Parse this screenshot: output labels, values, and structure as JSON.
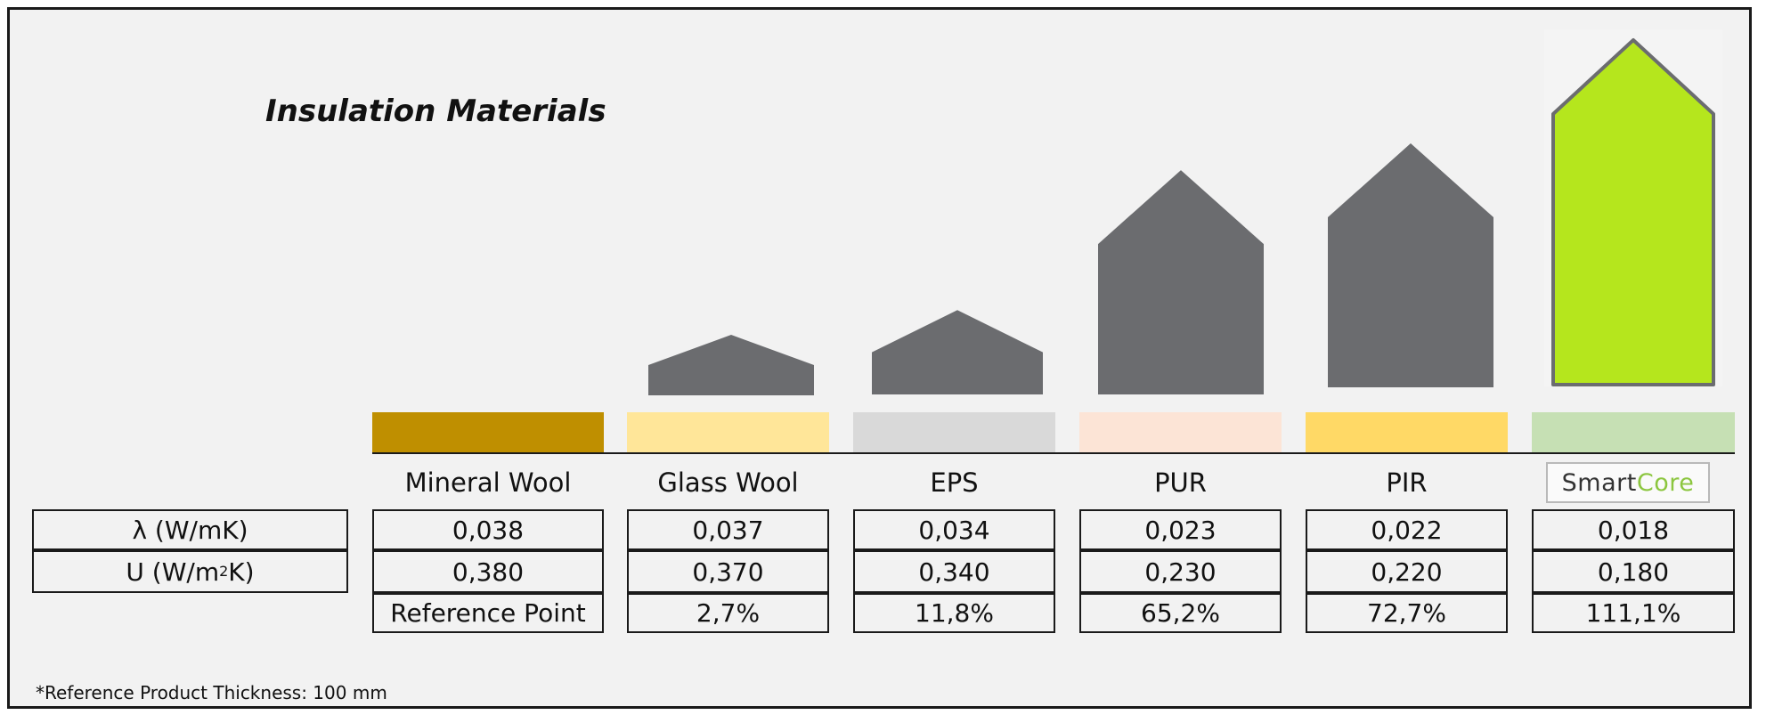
{
  "chart_data": {
    "type": "bar",
    "title": "Insulation Materials",
    "categories": [
      "Mineral Wool",
      "Glass Wool",
      "EPS",
      "PUR",
      "PIR",
      "SmartCore"
    ],
    "series": [
      {
        "name": "λ (W/mK)",
        "values": [
          "0,038",
          "0,037",
          "0,034",
          "0,023",
          "0,022",
          "0,018"
        ]
      },
      {
        "name": "U (W/m²K)",
        "values": [
          "0,380",
          "0,370",
          "0,340",
          "0,230",
          "0,220",
          "0,180"
        ]
      }
    ],
    "improvement_pct": [
      0,
      2.7,
      11.8,
      65.2,
      72.7,
      111.1
    ],
    "improvement_labels": [
      "Reference Point",
      "2,7%",
      "11,8%",
      "65,2%",
      "72,7%",
      "111,1%"
    ],
    "ylim": [
      0,
      111.1
    ],
    "colors": {
      "house": "#6b6c6f",
      "smartcore_house": "#b5e61d",
      "swatches": [
        "#bf8f00",
        "#ffe699",
        "#d9d9d9",
        "#fce4d6",
        "#ffd966",
        "#c6e0b4"
      ]
    }
  },
  "table": {
    "row_labels": {
      "lambda": "λ (W/mK)",
      "u_prefix": "U (W/m",
      "u_sup": "2",
      "u_suffix": "K)"
    }
  },
  "brand": {
    "smart": "Smart",
    "core_c": "C",
    "core_o": "o",
    "core_re": "re"
  },
  "footnote": "*Reference Product Thickness: 100 mm"
}
